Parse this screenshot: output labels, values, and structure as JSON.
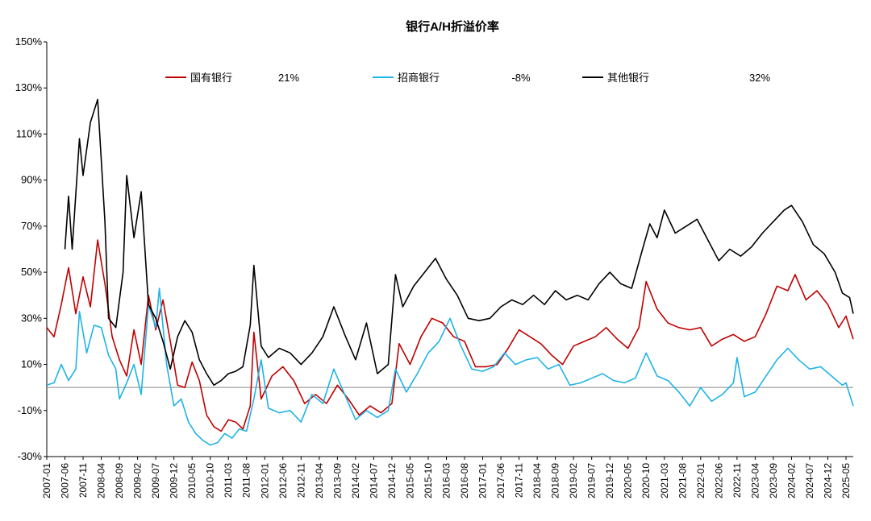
{
  "chart_data": {
    "type": "line",
    "title": "银行A/H折溢价率",
    "xlabel": "",
    "ylabel": "",
    "ylim": [
      -30,
      150
    ],
    "yticks": [
      -30,
      -10,
      10,
      30,
      50,
      70,
      90,
      110,
      130,
      150
    ],
    "ytick_labels": [
      "-30%",
      "-10%",
      "10%",
      "30%",
      "50%",
      "70%",
      "90%",
      "110%",
      "130%",
      "150%"
    ],
    "x_start": "2007-01",
    "x_end": "2025-07",
    "xtick_labels": [
      "2007-01",
      "2007-06",
      "2007-11",
      "2008-04",
      "2008-09",
      "2009-02",
      "2009-07",
      "2009-12",
      "2010-05",
      "2010-10",
      "2011-03",
      "2011-08",
      "2012-01",
      "2012-06",
      "2012-11",
      "2013-04",
      "2013-09",
      "2014-02",
      "2014-07",
      "2014-12",
      "2015-05",
      "2015-10",
      "2016-03",
      "2016-08",
      "2017-01",
      "2017-06",
      "2017-11",
      "2018-04",
      "2018-09",
      "2019-02",
      "2019-07",
      "2019-12",
      "2020-05",
      "2020-10",
      "2021-03",
      "2021-08",
      "2022-01",
      "2022-06",
      "2022-11",
      "2023-04",
      "2023-09",
      "2024-02",
      "2024-07",
      "2024-12",
      "2025-05"
    ],
    "grid": false,
    "legend_position": "top",
    "series": [
      {
        "name": "国有银行",
        "latest_label": "21%",
        "color": "#C00000",
        "points": [
          [
            "2007-01",
            26
          ],
          [
            "2007-03",
            22
          ],
          [
            "2007-05",
            36
          ],
          [
            "2007-07",
            52
          ],
          [
            "2007-09",
            32
          ],
          [
            "2007-11",
            48
          ],
          [
            "2008-01",
            35
          ],
          [
            "2008-03",
            64
          ],
          [
            "2008-05",
            45
          ],
          [
            "2008-07",
            22
          ],
          [
            "2008-09",
            12
          ],
          [
            "2008-11",
            5
          ],
          [
            "2009-01",
            25
          ],
          [
            "2009-03",
            10
          ],
          [
            "2009-05",
            40
          ],
          [
            "2009-07",
            25
          ],
          [
            "2009-09",
            38
          ],
          [
            "2009-11",
            20
          ],
          [
            "2010-01",
            1
          ],
          [
            "2010-03",
            0
          ],
          [
            "2010-05",
            11
          ],
          [
            "2010-07",
            3
          ],
          [
            "2010-09",
            -12
          ],
          [
            "2010-11",
            -17
          ],
          [
            "2011-01",
            -19
          ],
          [
            "2011-03",
            -14
          ],
          [
            "2011-05",
            -15
          ],
          [
            "2011-07",
            -18
          ],
          [
            "2011-09",
            -8
          ],
          [
            "2011-10",
            24
          ],
          [
            "2011-12",
            -5
          ],
          [
            "2012-03",
            5
          ],
          [
            "2012-06",
            9
          ],
          [
            "2012-09",
            3
          ],
          [
            "2012-12",
            -7
          ],
          [
            "2013-03",
            -3
          ],
          [
            "2013-06",
            -7
          ],
          [
            "2013-09",
            1
          ],
          [
            "2013-12",
            -5
          ],
          [
            "2014-03",
            -12
          ],
          [
            "2014-06",
            -8
          ],
          [
            "2014-09",
            -11
          ],
          [
            "2014-12",
            -7
          ],
          [
            "2015-02",
            19
          ],
          [
            "2015-05",
            10
          ],
          [
            "2015-08",
            22
          ],
          [
            "2015-11",
            30
          ],
          [
            "2016-02",
            28
          ],
          [
            "2016-05",
            22
          ],
          [
            "2016-08",
            20
          ],
          [
            "2016-11",
            9
          ],
          [
            "2017-02",
            9
          ],
          [
            "2017-05",
            10
          ],
          [
            "2017-08",
            17
          ],
          [
            "2017-11",
            25
          ],
          [
            "2018-02",
            22
          ],
          [
            "2018-05",
            19
          ],
          [
            "2018-08",
            14
          ],
          [
            "2018-11",
            10
          ],
          [
            "2019-02",
            18
          ],
          [
            "2019-05",
            20
          ],
          [
            "2019-08",
            22
          ],
          [
            "2019-11",
            26
          ],
          [
            "2020-02",
            21
          ],
          [
            "2020-05",
            17
          ],
          [
            "2020-08",
            26
          ],
          [
            "2020-10",
            46
          ],
          [
            "2021-01",
            34
          ],
          [
            "2021-04",
            28
          ],
          [
            "2021-07",
            26
          ],
          [
            "2021-10",
            25
          ],
          [
            "2022-01",
            26
          ],
          [
            "2022-04",
            18
          ],
          [
            "2022-07",
            21
          ],
          [
            "2022-10",
            23
          ],
          [
            "2023-01",
            20
          ],
          [
            "2023-04",
            22
          ],
          [
            "2023-07",
            32
          ],
          [
            "2023-10",
            44
          ],
          [
            "2024-01",
            42
          ],
          [
            "2024-03",
            49
          ],
          [
            "2024-06",
            38
          ],
          [
            "2024-09",
            42
          ],
          [
            "2024-12",
            36
          ],
          [
            "2025-03",
            26
          ],
          [
            "2025-05",
            31
          ],
          [
            "2025-07",
            21
          ]
        ]
      },
      {
        "name": "招商银行",
        "latest_label": "-8%",
        "color": "#1FB3E6",
        "points": [
          [
            "2007-01",
            1
          ],
          [
            "2007-03",
            2
          ],
          [
            "2007-05",
            10
          ],
          [
            "2007-07",
            3
          ],
          [
            "2007-09",
            8
          ],
          [
            "2007-10",
            33
          ],
          [
            "2007-12",
            15
          ],
          [
            "2008-02",
            27
          ],
          [
            "2008-04",
            26
          ],
          [
            "2008-06",
            14
          ],
          [
            "2008-08",
            8
          ],
          [
            "2008-09",
            -5
          ],
          [
            "2008-11",
            2
          ],
          [
            "2009-01",
            10
          ],
          [
            "2009-03",
            -3
          ],
          [
            "2009-05",
            36
          ],
          [
            "2009-07",
            26
          ],
          [
            "2009-08",
            43
          ],
          [
            "2009-10",
            10
          ],
          [
            "2009-12",
            -8
          ],
          [
            "2010-02",
            -5
          ],
          [
            "2010-04",
            -15
          ],
          [
            "2010-06",
            -20
          ],
          [
            "2010-08",
            -23
          ],
          [
            "2010-10",
            -25
          ],
          [
            "2010-12",
            -24
          ],
          [
            "2011-02",
            -20
          ],
          [
            "2011-04",
            -22
          ],
          [
            "2011-06",
            -18
          ],
          [
            "2011-08",
            -19
          ],
          [
            "2011-10",
            -5
          ],
          [
            "2011-12",
            12
          ],
          [
            "2012-02",
            -9
          ],
          [
            "2012-05",
            -11
          ],
          [
            "2012-08",
            -10
          ],
          [
            "2012-11",
            -15
          ],
          [
            "2013-02",
            -3
          ],
          [
            "2013-05",
            -7
          ],
          [
            "2013-08",
            8
          ],
          [
            "2013-11",
            -3
          ],
          [
            "2014-02",
            -14
          ],
          [
            "2014-05",
            -10
          ],
          [
            "2014-08",
            -13
          ],
          [
            "2014-11",
            -10
          ],
          [
            "2015-01",
            8
          ],
          [
            "2015-04",
            -2
          ],
          [
            "2015-07",
            6
          ],
          [
            "2015-10",
            15
          ],
          [
            "2016-01",
            20
          ],
          [
            "2016-04",
            30
          ],
          [
            "2016-07",
            18
          ],
          [
            "2016-10",
            8
          ],
          [
            "2017-01",
            7
          ],
          [
            "2017-04",
            9
          ],
          [
            "2017-07",
            15
          ],
          [
            "2017-10",
            10
          ],
          [
            "2018-01",
            12
          ],
          [
            "2018-04",
            13
          ],
          [
            "2018-07",
            8
          ],
          [
            "2018-10",
            10
          ],
          [
            "2019-01",
            1
          ],
          [
            "2019-04",
            2
          ],
          [
            "2019-07",
            4
          ],
          [
            "2019-10",
            6
          ],
          [
            "2020-01",
            3
          ],
          [
            "2020-04",
            2
          ],
          [
            "2020-07",
            4
          ],
          [
            "2020-10",
            15
          ],
          [
            "2021-01",
            5
          ],
          [
            "2021-04",
            3
          ],
          [
            "2021-07",
            -2
          ],
          [
            "2021-10",
            -8
          ],
          [
            "2022-01",
            0
          ],
          [
            "2022-04",
            -6
          ],
          [
            "2022-07",
            -3
          ],
          [
            "2022-10",
            2
          ],
          [
            "2022-11",
            13
          ],
          [
            "2023-01",
            -4
          ],
          [
            "2023-04",
            -2
          ],
          [
            "2023-07",
            5
          ],
          [
            "2023-10",
            12
          ],
          [
            "2024-01",
            17
          ],
          [
            "2024-04",
            12
          ],
          [
            "2024-07",
            8
          ],
          [
            "2024-10",
            9
          ],
          [
            "2025-01",
            5
          ],
          [
            "2025-04",
            1
          ],
          [
            "2025-05",
            2
          ],
          [
            "2025-07",
            -8
          ]
        ]
      },
      {
        "name": "其他银行",
        "latest_label": "32%",
        "color": "#000000",
        "points": [
          [
            "2007-06",
            60
          ],
          [
            "2007-07",
            83
          ],
          [
            "2007-08",
            60
          ],
          [
            "2007-10",
            108
          ],
          [
            "2007-11",
            92
          ],
          [
            "2008-01",
            115
          ],
          [
            "2008-03",
            125
          ],
          [
            "2008-05",
            72
          ],
          [
            "2008-06",
            30
          ],
          [
            "2008-08",
            26
          ],
          [
            "2008-10",
            50
          ],
          [
            "2008-11",
            92
          ],
          [
            "2009-01",
            65
          ],
          [
            "2009-03",
            85
          ],
          [
            "2009-05",
            36
          ],
          [
            "2009-07",
            30
          ],
          [
            "2009-09",
            20
          ],
          [
            "2009-11",
            8
          ],
          [
            "2010-01",
            22
          ],
          [
            "2010-03",
            29
          ],
          [
            "2010-05",
            24
          ],
          [
            "2010-07",
            12
          ],
          [
            "2010-09",
            6
          ],
          [
            "2010-11",
            1
          ],
          [
            "2011-01",
            3
          ],
          [
            "2011-03",
            6
          ],
          [
            "2011-05",
            7
          ],
          [
            "2011-07",
            9
          ],
          [
            "2011-09",
            27
          ],
          [
            "2011-10",
            53
          ],
          [
            "2011-12",
            18
          ],
          [
            "2012-02",
            13
          ],
          [
            "2012-05",
            17
          ],
          [
            "2012-08",
            15
          ],
          [
            "2012-11",
            10
          ],
          [
            "2013-02",
            15
          ],
          [
            "2013-05",
            22
          ],
          [
            "2013-08",
            35
          ],
          [
            "2013-11",
            23
          ],
          [
            "2014-02",
            12
          ],
          [
            "2014-05",
            28
          ],
          [
            "2014-08",
            6
          ],
          [
            "2014-11",
            10
          ],
          [
            "2015-01",
            49
          ],
          [
            "2015-03",
            35
          ],
          [
            "2015-06",
            44
          ],
          [
            "2015-09",
            50
          ],
          [
            "2015-12",
            56
          ],
          [
            "2016-03",
            47
          ],
          [
            "2016-06",
            40
          ],
          [
            "2016-09",
            30
          ],
          [
            "2016-12",
            29
          ],
          [
            "2017-03",
            30
          ],
          [
            "2017-06",
            35
          ],
          [
            "2017-09",
            38
          ],
          [
            "2017-12",
            36
          ],
          [
            "2018-03",
            40
          ],
          [
            "2018-06",
            36
          ],
          [
            "2018-09",
            42
          ],
          [
            "2018-12",
            38
          ],
          [
            "2019-03",
            40
          ],
          [
            "2019-06",
            38
          ],
          [
            "2019-09",
            45
          ],
          [
            "2019-12",
            50
          ],
          [
            "2020-03",
            45
          ],
          [
            "2020-06",
            43
          ],
          [
            "2020-09",
            60
          ],
          [
            "2020-11",
            71
          ],
          [
            "2021-01",
            65
          ],
          [
            "2021-03",
            77
          ],
          [
            "2021-06",
            67
          ],
          [
            "2021-09",
            70
          ],
          [
            "2021-12",
            73
          ],
          [
            "2022-03",
            64
          ],
          [
            "2022-06",
            55
          ],
          [
            "2022-09",
            60
          ],
          [
            "2022-12",
            57
          ],
          [
            "2023-03",
            61
          ],
          [
            "2023-06",
            67
          ],
          [
            "2023-09",
            72
          ],
          [
            "2023-12",
            77
          ],
          [
            "2024-02",
            79
          ],
          [
            "2024-05",
            72
          ],
          [
            "2024-08",
            62
          ],
          [
            "2024-11",
            58
          ],
          [
            "2025-02",
            50
          ],
          [
            "2025-04",
            41
          ],
          [
            "2025-06",
            39
          ],
          [
            "2025-07",
            32
          ]
        ]
      }
    ]
  }
}
